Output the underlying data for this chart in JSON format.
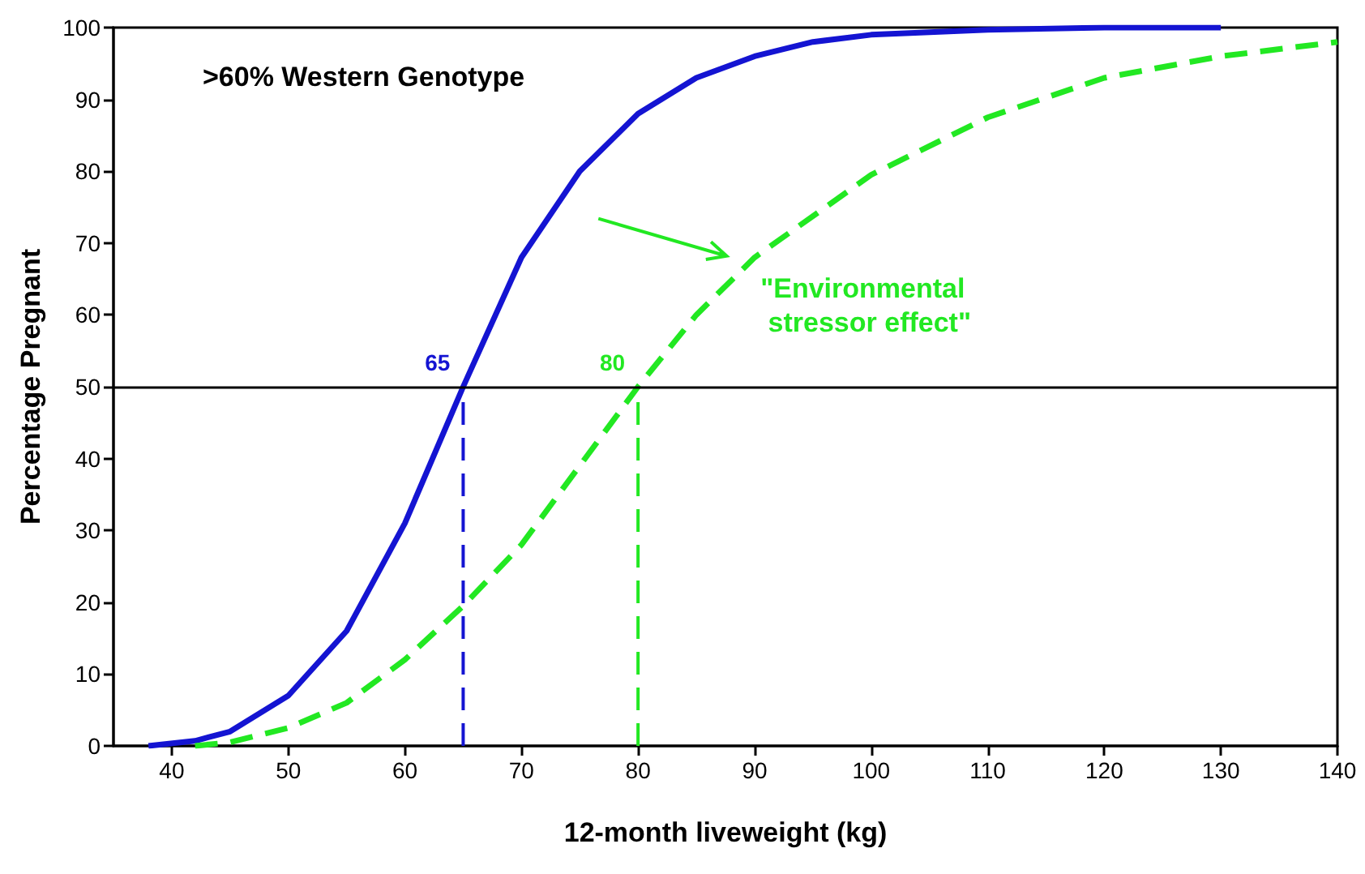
{
  "chart_data": {
    "type": "line",
    "xlabel": "12-month liveweight (kg)",
    "ylabel": "Percentage Pregnant",
    "annotations": [
      ">60% Western Genotype",
      "\"Environmental\n stressor effect\"",
      {
        "text": "65",
        "x": 65,
        "y": 50
      },
      {
        "text": "80",
        "x": 80,
        "y": 50
      }
    ],
    "series": [
      {
        "color": "#1414d2",
        "line_style": "solid",
        "x": [
          38,
          42,
          45,
          50,
          55,
          60,
          65,
          70,
          75,
          80,
          85,
          90,
          95,
          100,
          110,
          120,
          130
        ],
        "values": [
          0,
          0.7,
          2,
          7,
          16,
          31,
          50,
          68,
          80,
          88,
          93,
          96,
          98,
          99,
          99.7,
          100,
          100
        ]
      },
      {
        "color": "#22e822",
        "line_style": "dashed",
        "x": [
          42,
          45,
          50,
          55,
          60,
          65,
          70,
          75,
          80,
          85,
          90,
          100,
          110,
          120,
          130,
          140
        ],
        "values": [
          0,
          0.5,
          2.5,
          6,
          12,
          19.5,
          28,
          39,
          50,
          60,
          68,
          79.5,
          87.5,
          93,
          96,
          98
        ]
      },
      {
        "color": "#1414d2",
        "line_style": "dashed",
        "x": [
          65,
          65
        ],
        "values": [
          0,
          50
        ]
      },
      {
        "color": "#22e822",
        "line_style": "dashed",
        "x": [
          80,
          80
        ],
        "values": [
          0,
          50
        ]
      }
    ],
    "xlim": [
      35,
      140
    ],
    "xticks": [
      40,
      50,
      60,
      70,
      80,
      90,
      100,
      110,
      120,
      130,
      140
    ],
    "ylim": [
      0,
      100
    ],
    "yticks": [
      0,
      10,
      20,
      30,
      40,
      50,
      60,
      70,
      80,
      90,
      100
    ],
    "ref_lines": [
      {
        "axis": "y",
        "value": 50,
        "color": "#000000"
      }
    ],
    "grid": false,
    "marker": "none"
  }
}
